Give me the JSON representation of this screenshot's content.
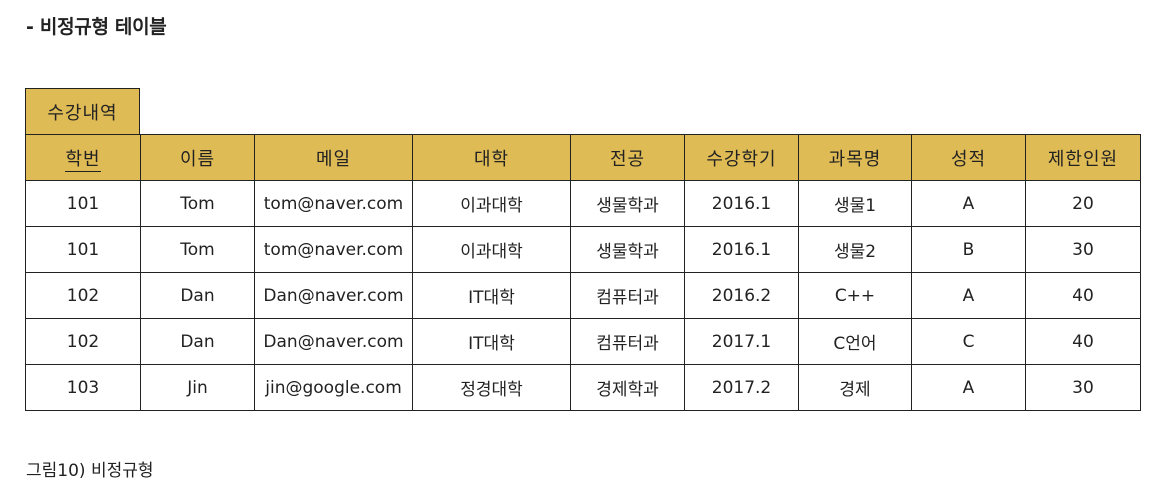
{
  "heading": "- 비정규형 테이블",
  "table": {
    "caption": "수강내역",
    "columns": [
      "학번",
      "이름",
      "메일",
      "대학",
      "전공",
      "수강학기",
      "과목명",
      "성적",
      "제한인원"
    ],
    "rows": [
      [
        "101",
        "Tom",
        "tom@naver.com",
        "이과대학",
        "생물학과",
        "2016.1",
        "생물1",
        "A",
        "20"
      ],
      [
        "101",
        "Tom",
        "tom@naver.com",
        "이과대학",
        "생물학과",
        "2016.1",
        "생물2",
        "B",
        "30"
      ],
      [
        "102",
        "Dan",
        "Dan@naver.com",
        "IT대학",
        "컴퓨터과",
        "2016.2",
        "C++",
        "A",
        "40"
      ],
      [
        "102",
        "Dan",
        "Dan@naver.com",
        "IT대학",
        "컴퓨터과",
        "2017.1",
        "C언어",
        "C",
        "40"
      ],
      [
        "103",
        "Jin",
        "jin@google.com",
        "정경대학",
        "경제학과",
        "2017.2",
        "경제",
        "A",
        "30"
      ]
    ]
  },
  "figure_caption": "그림10) 비정규형",
  "colors": {
    "header_background": "#dfbb56",
    "border": "#222222"
  }
}
